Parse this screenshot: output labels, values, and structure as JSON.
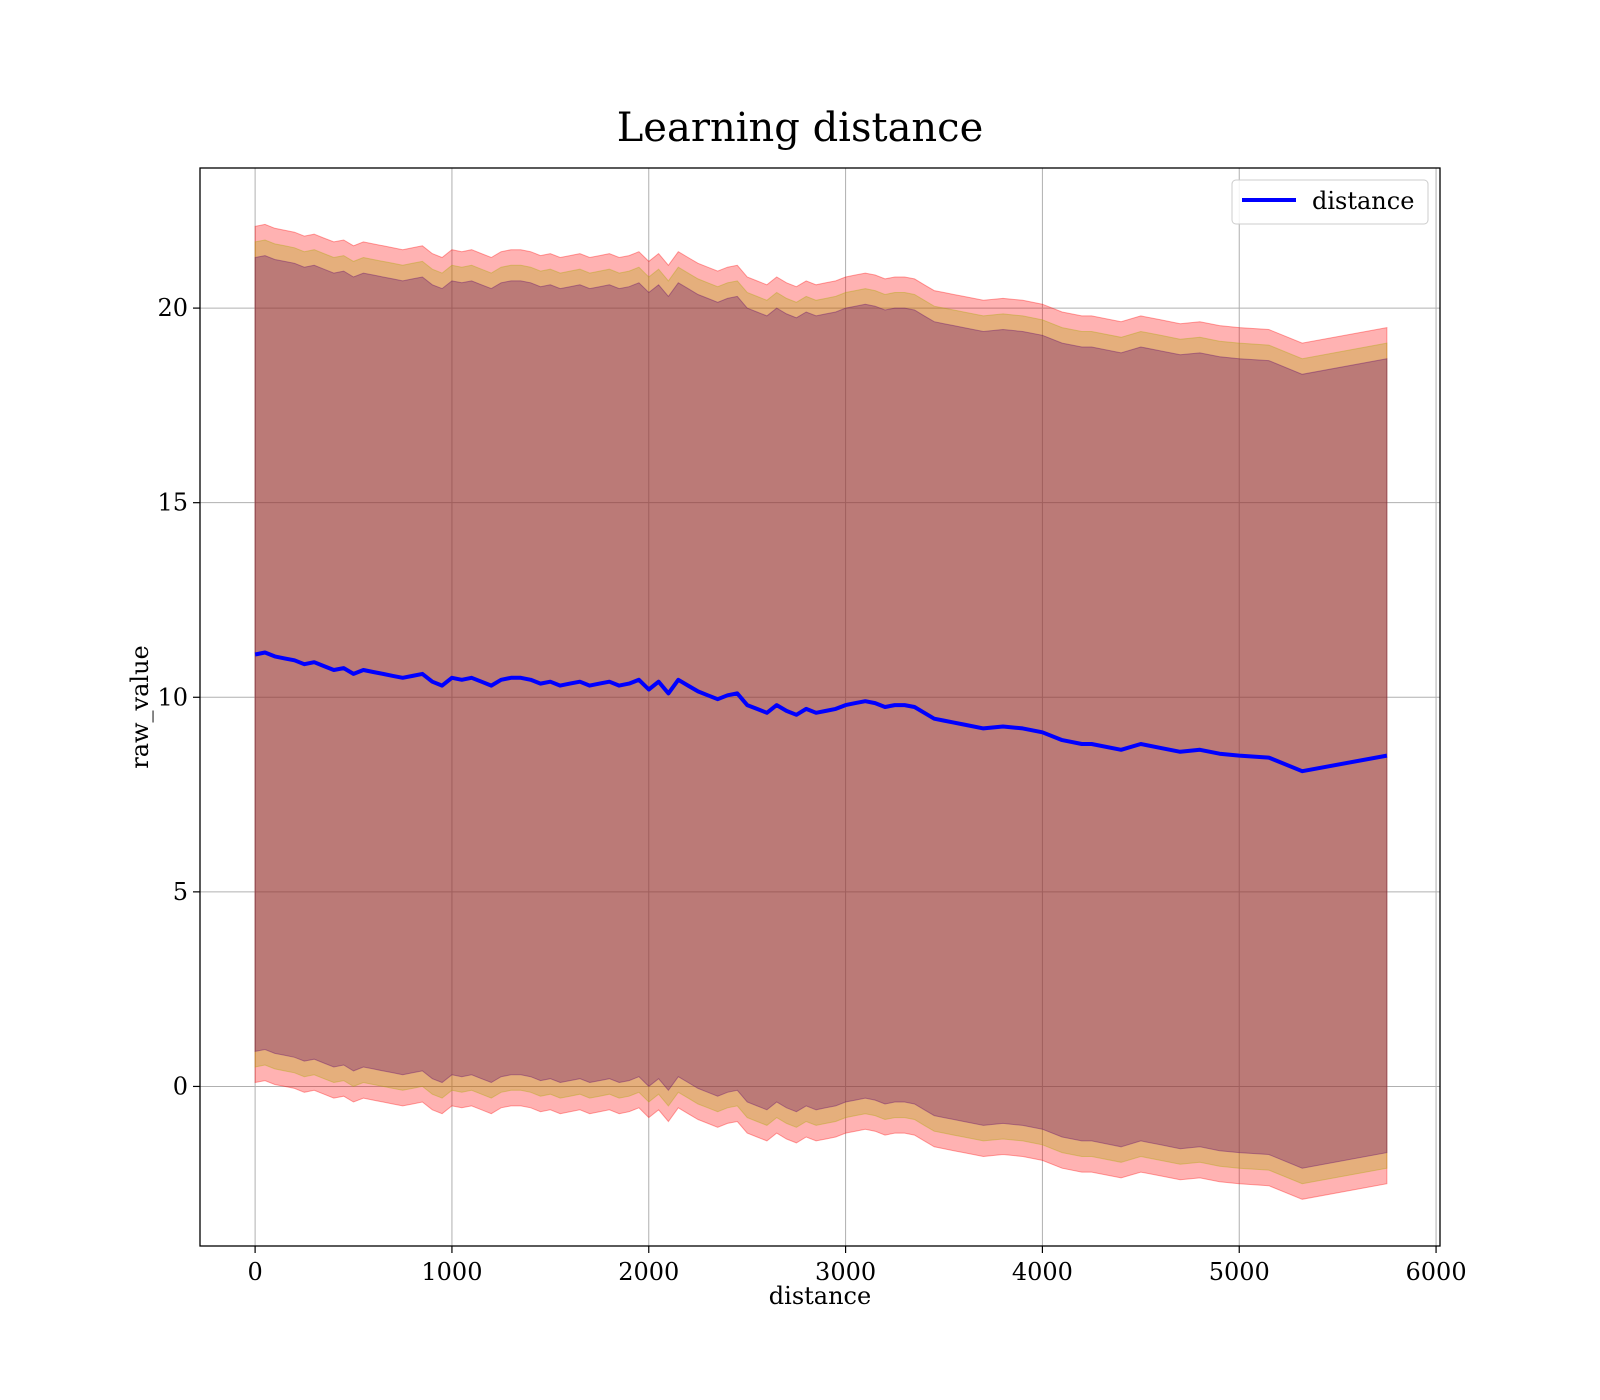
{
  "chart_data": {
    "type": "line",
    "title": "Learning distance",
    "xlabel": "distance",
    "ylabel": "raw_value",
    "xlim": [
      -280,
      6020
    ],
    "ylim": [
      -4.1,
      23.6
    ],
    "xticks": [
      0,
      1000,
      2000,
      3000,
      4000,
      5000,
      6000
    ],
    "yticks": [
      0,
      5,
      10,
      15,
      20
    ],
    "grid": true,
    "legend_position": "top-right",
    "colors": {
      "line": "#0000ff",
      "outer_band": "#ff0000",
      "middle_band": "#a8a800",
      "inner_band": "#5a006e",
      "grid": "#b0b0b0"
    },
    "series": [
      {
        "name": "distance",
        "x": [
          0,
          50,
          100,
          150,
          200,
          250,
          300,
          350,
          400,
          450,
          500,
          550,
          600,
          650,
          700,
          750,
          800,
          850,
          900,
          950,
          1000,
          1050,
          1100,
          1150,
          1200,
          1250,
          1300,
          1350,
          1400,
          1450,
          1500,
          1550,
          1600,
          1650,
          1700,
          1750,
          1800,
          1850,
          1900,
          1950,
          2000,
          2050,
          2100,
          2150,
          2200,
          2250,
          2300,
          2350,
          2400,
          2450,
          2500,
          2550,
          2600,
          2650,
          2700,
          2750,
          2800,
          2850,
          2900,
          2950,
          3000,
          3050,
          3100,
          3150,
          3200,
          3250,
          3300,
          3350,
          3400,
          3450,
          3500,
          3550,
          3600,
          3700,
          3800,
          3900,
          4000,
          4100,
          4200,
          4250,
          4400,
          4500,
          4600,
          4700,
          4800,
          4900,
          5000,
          5150,
          5320,
          5750
        ],
        "values": [
          11.1,
          11.15,
          11.05,
          11.0,
          10.95,
          10.85,
          10.9,
          10.8,
          10.7,
          10.75,
          10.6,
          10.7,
          10.65,
          10.6,
          10.55,
          10.5,
          10.55,
          10.6,
          10.4,
          10.3,
          10.5,
          10.45,
          10.5,
          10.4,
          10.3,
          10.45,
          10.5,
          10.5,
          10.45,
          10.35,
          10.4,
          10.3,
          10.35,
          10.4,
          10.3,
          10.35,
          10.4,
          10.3,
          10.35,
          10.45,
          10.2,
          10.4,
          10.1,
          10.45,
          10.3,
          10.15,
          10.05,
          9.95,
          10.05,
          10.1,
          9.8,
          9.7,
          9.6,
          9.8,
          9.65,
          9.55,
          9.7,
          9.6,
          9.65,
          9.7,
          9.8,
          9.85,
          9.9,
          9.85,
          9.75,
          9.8,
          9.8,
          9.75,
          9.6,
          9.45,
          9.4,
          9.35,
          9.3,
          9.2,
          9.25,
          9.2,
          9.1,
          8.9,
          8.8,
          8.8,
          8.65,
          8.8,
          8.7,
          8.6,
          8.65,
          8.55,
          8.5,
          8.45,
          8.1,
          8.5
        ]
      }
    ],
    "bands": [
      {
        "color_key": "outer_band",
        "half_width": 11.0
      },
      {
        "color_key": "middle_band",
        "half_width": 10.6
      },
      {
        "color_key": "inner_band",
        "half_width": 10.2
      }
    ]
  }
}
